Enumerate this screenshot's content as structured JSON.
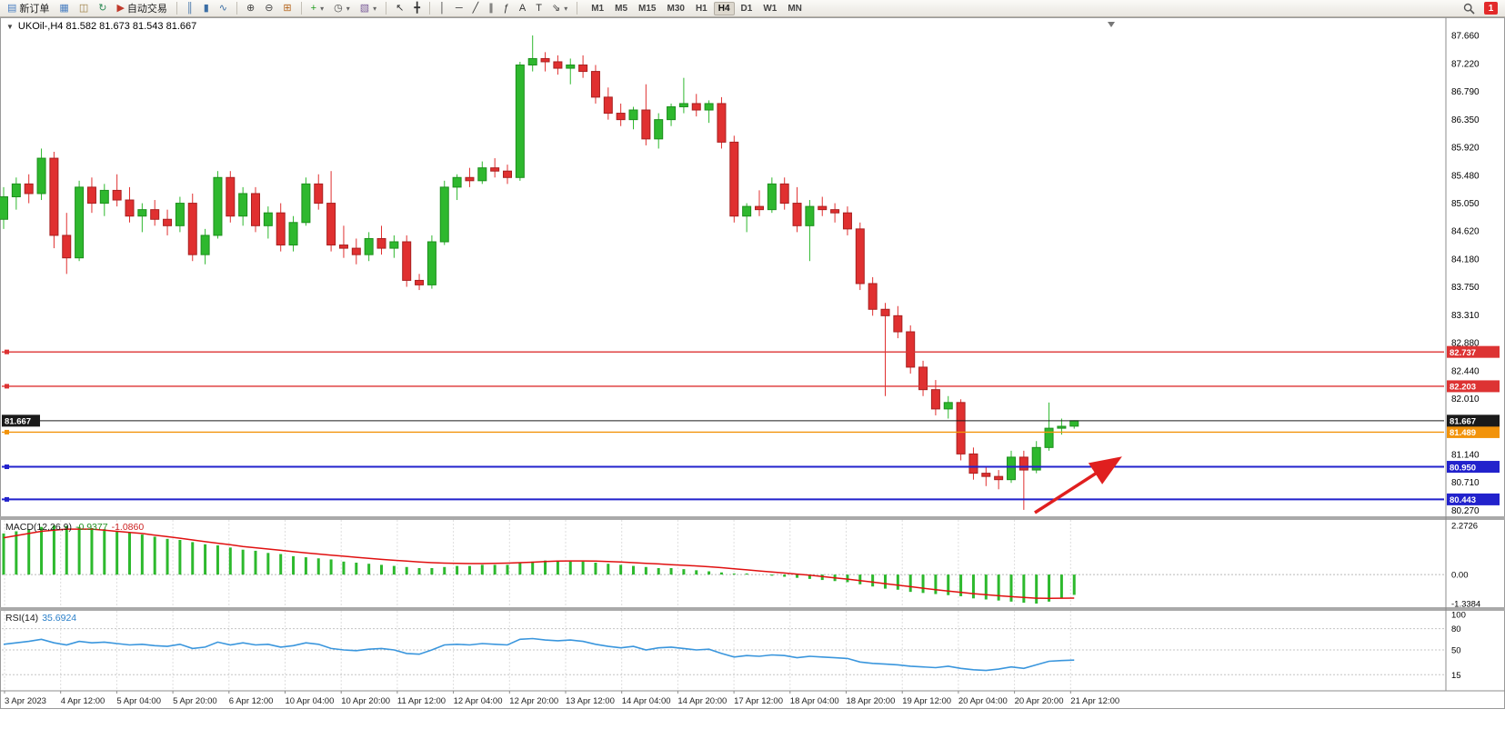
{
  "toolbar": {
    "items": [
      {
        "t": "btn",
        "name": "new-order-button",
        "glyph": "▤",
        "glyph_color": "#4a7fc1",
        "label": "新订单"
      },
      {
        "t": "btn",
        "name": "chart-window-button",
        "glyph": "▦",
        "glyph_color": "#4a7fc1"
      },
      {
        "t": "btn",
        "name": "profiles-button",
        "glyph": "◫",
        "glyph_color": "#9a7b3f"
      },
      {
        "t": "btn",
        "name": "refresh-button",
        "glyph": "↻",
        "glyph_color": "#2e8b57"
      },
      {
        "t": "btn",
        "name": "autotrading-button",
        "glyph": "▶",
        "glyph_color": "#c0392b",
        "label": "自动交易"
      },
      {
        "t": "sep"
      },
      {
        "t": "btn",
        "name": "bar-chart-type-button",
        "glyph": "║",
        "glyph_color": "#3b6ea5"
      },
      {
        "t": "btn",
        "name": "candlestick-chart-type-button",
        "glyph": "▮",
        "glyph_color": "#3b6ea5"
      },
      {
        "t": "btn",
        "name": "line-chart-type-button",
        "glyph": "∿",
        "glyph_color": "#3b6ea5"
      },
      {
        "t": "sep"
      },
      {
        "t": "btn",
        "name": "zoom-in-button",
        "glyph": "⊕",
        "glyph_color": "#444444"
      },
      {
        "t": "btn",
        "name": "zoom-out-button",
        "glyph": "⊖",
        "glyph_color": "#444444"
      },
      {
        "t": "btn",
        "name": "tile-windows-button",
        "glyph": "⊞",
        "glyph_color": "#b5651d"
      },
      {
        "t": "sep"
      },
      {
        "t": "btn",
        "name": "indicators-button",
        "glyph": "+",
        "glyph_color": "#1f9d1f",
        "caret": true
      },
      {
        "t": "btn",
        "name": "periods-button",
        "glyph": "◷",
        "glyph_color": "#444444",
        "caret": true
      },
      {
        "t": "btn",
        "name": "templates-button",
        "glyph": "▧",
        "glyph_color": "#7a5c99",
        "caret": true
      },
      {
        "t": "sep"
      },
      {
        "t": "btn",
        "name": "cursor-button",
        "glyph": "↖",
        "glyph_color": "#333333"
      },
      {
        "t": "btn",
        "name": "crosshair-button",
        "glyph": "╋",
        "glyph_color": "#333333"
      },
      {
        "t": "sep"
      },
      {
        "t": "btn",
        "name": "vertical-line-button",
        "glyph": "│",
        "glyph_color": "#333333"
      },
      {
        "t": "btn",
        "name": "horizontal-line-button",
        "glyph": "─",
        "glyph_color": "#333333"
      },
      {
        "t": "btn",
        "name": "trendline-button",
        "glyph": "╱",
        "glyph_color": "#333333"
      },
      {
        "t": "btn",
        "name": "equidistant-channel-button",
        "glyph": "∥",
        "glyph_color": "#333333"
      },
      {
        "t": "btn",
        "name": "fibonacci-button",
        "glyph": "ƒ",
        "glyph_color": "#333333"
      },
      {
        "t": "btn",
        "name": "text-button",
        "glyph": "A",
        "glyph_color": "#333333"
      },
      {
        "t": "btn",
        "name": "text-label-button",
        "glyph": "T",
        "glyph_color": "#333333"
      },
      {
        "t": "btn",
        "name": "arrows-tool-button",
        "glyph": "⇘",
        "glyph_color": "#333333",
        "caret": true
      },
      {
        "t": "sep"
      },
      {
        "t": "tf"
      }
    ],
    "timeframes": [
      "M1",
      "M5",
      "M15",
      "M30",
      "H1",
      "H4",
      "D1",
      "W1",
      "MN"
    ],
    "active_timeframe": "H4",
    "notification_count": "1"
  },
  "chart": {
    "expander_glyph": "▼",
    "symbol_ohlc": "UKOil-,H4 81.582 81.673 81.543 81.667",
    "macd_name": "MACD(12,26,9)",
    "macd_value1": "-0.9377",
    "macd_value2": "-1.0860",
    "rsi_name": "RSI(14)",
    "rsi_value": "35.6924",
    "colors": {
      "candle_up": "#2eb82e",
      "candle_up_border": "#1d8f1d",
      "candle_down": "#e03030",
      "candle_down_border": "#a82020",
      "macd_histogram": "#2db92d",
      "macd_signal": "#e01010",
      "rsi_line": "#3a96dd",
      "arrow": "#e01f1f",
      "level_red": "#dd3333",
      "level_orange": "#f2930a",
      "level_blue": "#2222cc",
      "current_price": "#1a1a1a"
    }
  },
  "chart_data": {
    "type": "candlestick",
    "symbol": "UKOil-",
    "timeframe": "H4",
    "ylim": [
      80.18,
      87.9
    ],
    "y_ticks": [
      87.66,
      87.22,
      86.79,
      86.35,
      85.92,
      85.48,
      85.05,
      84.62,
      84.18,
      83.75,
      83.31,
      82.88,
      82.44,
      82.01,
      81.14,
      80.71,
      80.27
    ],
    "x_ticks": [
      "3 Apr 2023",
      "4 Apr 12:00",
      "5 Apr 04:00",
      "5 Apr 20:00",
      "6 Apr 12:00",
      "10 Apr 04:00",
      "10 Apr 20:00",
      "11 Apr 12:00",
      "12 Apr 04:00",
      "12 Apr 20:00",
      "13 Apr 12:00",
      "14 Apr 04:00",
      "14 Apr 20:00",
      "17 Apr 12:00",
      "18 Apr 04:00",
      "18 Apr 20:00",
      "19 Apr 12:00",
      "20 Apr 04:00",
      "20 Apr 20:00",
      "21 Apr 12:00"
    ],
    "levels": [
      {
        "value": 82.737,
        "label": "82.737",
        "type": "resistance",
        "color": "#dd3333"
      },
      {
        "value": 82.203,
        "label": "82.203",
        "type": "resistance",
        "color": "#dd3333"
      },
      {
        "value": 81.489,
        "label": "81.489",
        "type": "level",
        "color": "#f2930a"
      },
      {
        "value": 80.95,
        "label": "80.950",
        "type": "support",
        "color": "#2222cc"
      },
      {
        "value": 80.443,
        "label": "80.443",
        "type": "support",
        "color": "#2222cc"
      },
      {
        "value": 81.667,
        "label": "81.667",
        "type": "current_price",
        "color": "#1a1a1a",
        "current": true
      }
    ],
    "ohlc": [
      [
        84.8,
        85.3,
        84.65,
        85.15
      ],
      [
        85.15,
        85.45,
        84.95,
        85.35
      ],
      [
        85.35,
        85.5,
        85.05,
        85.2
      ],
      [
        85.2,
        85.9,
        85.1,
        85.75
      ],
      [
        85.75,
        85.85,
        84.35,
        84.55
      ],
      [
        84.55,
        84.9,
        83.95,
        84.2
      ],
      [
        84.2,
        85.4,
        84.15,
        85.3
      ],
      [
        85.3,
        85.45,
        84.9,
        85.05
      ],
      [
        85.05,
        85.35,
        84.85,
        85.25
      ],
      [
        85.25,
        85.5,
        85.0,
        85.1
      ],
      [
        85.1,
        85.3,
        84.75,
        84.85
      ],
      [
        84.85,
        85.05,
        84.6,
        84.95
      ],
      [
        84.95,
        85.1,
        84.7,
        84.8
      ],
      [
        84.8,
        84.95,
        84.55,
        84.7
      ],
      [
        84.7,
        85.15,
        84.6,
        85.05
      ],
      [
        85.05,
        85.2,
        84.15,
        84.25
      ],
      [
        84.25,
        84.65,
        84.1,
        84.55
      ],
      [
        84.55,
        85.55,
        84.5,
        85.45
      ],
      [
        85.45,
        85.55,
        84.75,
        84.85
      ],
      [
        84.85,
        85.3,
        84.7,
        85.2
      ],
      [
        85.2,
        85.3,
        84.6,
        84.7
      ],
      [
        84.7,
        85.0,
        84.5,
        84.9
      ],
      [
        84.9,
        85.05,
        84.3,
        84.4
      ],
      [
        84.4,
        84.85,
        84.3,
        84.75
      ],
      [
        84.75,
        85.45,
        84.7,
        85.35
      ],
      [
        85.35,
        85.5,
        84.95,
        85.05
      ],
      [
        85.05,
        85.55,
        84.3,
        84.4
      ],
      [
        84.4,
        84.7,
        84.2,
        84.35
      ],
      [
        84.35,
        84.5,
        84.1,
        84.25
      ],
      [
        84.25,
        84.6,
        84.15,
        84.5
      ],
      [
        84.5,
        84.7,
        84.25,
        84.35
      ],
      [
        84.35,
        84.55,
        84.2,
        84.45
      ],
      [
        84.45,
        84.55,
        83.75,
        83.85
      ],
      [
        83.85,
        83.95,
        83.7,
        83.78
      ],
      [
        83.78,
        84.55,
        83.72,
        84.45
      ],
      [
        84.45,
        85.4,
        84.4,
        85.3
      ],
      [
        85.3,
        85.5,
        85.1,
        85.45
      ],
      [
        85.45,
        85.6,
        85.3,
        85.4
      ],
      [
        85.4,
        85.7,
        85.35,
        85.6
      ],
      [
        85.6,
        85.75,
        85.45,
        85.55
      ],
      [
        85.55,
        85.65,
        85.35,
        85.45
      ],
      [
        85.45,
        87.25,
        85.4,
        87.2
      ],
      [
        87.2,
        87.66,
        87.1,
        87.3
      ],
      [
        87.3,
        87.4,
        87.1,
        87.25
      ],
      [
        87.25,
        87.35,
        87.05,
        87.15
      ],
      [
        87.15,
        87.3,
        86.9,
        87.2
      ],
      [
        87.2,
        87.35,
        87.0,
        87.1
      ],
      [
        87.1,
        87.2,
        86.6,
        86.7
      ],
      [
        86.7,
        86.85,
        86.35,
        86.45
      ],
      [
        86.45,
        86.6,
        86.25,
        86.35
      ],
      [
        86.35,
        86.55,
        86.2,
        86.5
      ],
      [
        86.5,
        86.9,
        85.95,
        86.05
      ],
      [
        86.05,
        86.45,
        85.9,
        86.35
      ],
      [
        86.35,
        86.6,
        86.25,
        86.55
      ],
      [
        86.55,
        87.0,
        86.45,
        86.6
      ],
      [
        86.6,
        86.75,
        86.4,
        86.5
      ],
      [
        86.5,
        86.65,
        86.3,
        86.6
      ],
      [
        86.6,
        86.7,
        85.9,
        86.0
      ],
      [
        86.0,
        86.1,
        84.75,
        84.85
      ],
      [
        84.85,
        85.05,
        84.6,
        85.0
      ],
      [
        85.0,
        85.25,
        84.85,
        84.95
      ],
      [
        84.95,
        85.45,
        84.9,
        85.35
      ],
      [
        85.35,
        85.45,
        84.95,
        85.05
      ],
      [
        85.05,
        85.3,
        84.6,
        84.7
      ],
      [
        84.7,
        85.1,
        84.15,
        85.0
      ],
      [
        85.0,
        85.15,
        84.85,
        84.95
      ],
      [
        84.95,
        85.05,
        84.75,
        84.9
      ],
      [
        84.9,
        85.0,
        84.55,
        84.65
      ],
      [
        84.65,
        84.75,
        83.7,
        83.8
      ],
      [
        83.8,
        83.9,
        83.3,
        83.4
      ],
      [
        83.4,
        83.5,
        82.05,
        83.3
      ],
      [
        83.3,
        83.45,
        82.95,
        83.05
      ],
      [
        83.05,
        83.15,
        82.4,
        82.5
      ],
      [
        82.5,
        82.6,
        82.05,
        82.15
      ],
      [
        82.15,
        82.3,
        81.75,
        81.85
      ],
      [
        81.85,
        82.05,
        81.7,
        81.95
      ],
      [
        81.95,
        82.0,
        81.05,
        81.15
      ],
      [
        81.15,
        81.25,
        80.75,
        80.85
      ],
      [
        80.85,
        80.95,
        80.65,
        80.8
      ],
      [
        80.8,
        80.9,
        80.6,
        80.75
      ],
      [
        80.75,
        81.2,
        80.7,
        81.1
      ],
      [
        81.1,
        81.2,
        80.28,
        80.9
      ],
      [
        80.9,
        81.35,
        80.85,
        81.25
      ],
      [
        81.25,
        81.95,
        81.2,
        81.55
      ],
      [
        81.55,
        81.7,
        81.45,
        81.58
      ],
      [
        81.582,
        81.673,
        81.543,
        81.667
      ]
    ],
    "indicators": {
      "macd": {
        "params": "12,26,9",
        "axis_labels": [
          "2.2726",
          "0.00",
          "-1.3384"
        ],
        "axis_values": [
          2.2726,
          0,
          -1.3384
        ],
        "histogram": [
          1.9,
          2.0,
          2.1,
          2.2,
          2.27,
          2.25,
          2.2,
          2.15,
          2.1,
          2.0,
          1.95,
          1.85,
          1.75,
          1.65,
          1.6,
          1.5,
          1.4,
          1.35,
          1.25,
          1.15,
          1.1,
          1.0,
          0.95,
          0.85,
          0.8,
          0.75,
          0.7,
          0.6,
          0.55,
          0.5,
          0.45,
          0.4,
          0.35,
          0.3,
          0.3,
          0.35,
          0.4,
          0.4,
          0.45,
          0.45,
          0.45,
          0.55,
          0.6,
          0.65,
          0.65,
          0.6,
          0.6,
          0.55,
          0.5,
          0.45,
          0.4,
          0.35,
          0.3,
          0.3,
          0.25,
          0.2,
          0.15,
          0.1,
          0.05,
          0.05,
          0.0,
          -0.05,
          -0.1,
          -0.15,
          -0.2,
          -0.25,
          -0.3,
          -0.35,
          -0.45,
          -0.55,
          -0.65,
          -0.7,
          -0.8,
          -0.85,
          -0.9,
          -0.95,
          -1.0,
          -1.1,
          -1.15,
          -1.2,
          -1.25,
          -1.3,
          -1.34,
          -1.25,
          -1.1,
          -0.9377
        ],
        "signal": [
          1.7,
          1.8,
          1.9,
          2.0,
          2.05,
          2.1,
          2.1,
          2.1,
          2.05,
          2.0,
          1.95,
          1.9,
          1.82,
          1.75,
          1.68,
          1.6,
          1.52,
          1.45,
          1.38,
          1.3,
          1.24,
          1.18,
          1.12,
          1.06,
          1.0,
          0.95,
          0.9,
          0.85,
          0.8,
          0.75,
          0.7,
          0.66,
          0.62,
          0.58,
          0.55,
          0.53,
          0.52,
          0.51,
          0.51,
          0.52,
          0.53,
          0.55,
          0.57,
          0.6,
          0.62,
          0.63,
          0.63,
          0.62,
          0.6,
          0.58,
          0.55,
          0.52,
          0.49,
          0.46,
          0.43,
          0.4,
          0.36,
          0.32,
          0.27,
          0.22,
          0.17,
          0.12,
          0.07,
          0.02,
          -0.03,
          -0.09,
          -0.15,
          -0.21,
          -0.28,
          -0.35,
          -0.42,
          -0.49,
          -0.56,
          -0.63,
          -0.7,
          -0.76,
          -0.82,
          -0.88,
          -0.93,
          -0.98,
          -1.02,
          -1.06,
          -1.09,
          -1.1,
          -1.09,
          -1.086
        ]
      },
      "rsi": {
        "params": "14",
        "axis_labels": [
          "100",
          "80",
          "50",
          "15"
        ],
        "axis_values": [
          100,
          80,
          50,
          15
        ],
        "values": [
          58,
          60,
          62,
          65,
          60,
          57,
          62,
          60,
          61,
          59,
          57,
          58,
          56,
          55,
          58,
          52,
          54,
          61,
          57,
          60,
          57,
          58,
          54,
          56,
          60,
          58,
          52,
          50,
          49,
          51,
          52,
          50,
          45,
          44,
          50,
          57,
          58,
          57,
          59,
          58,
          57,
          65,
          66,
          64,
          63,
          64,
          62,
          58,
          55,
          53,
          55,
          50,
          53,
          54,
          52,
          50,
          51,
          45,
          40,
          42,
          41,
          43,
          42,
          39,
          41,
          40,
          39,
          38,
          33,
          31,
          30,
          29,
          27,
          26,
          25,
          27,
          24,
          22,
          21,
          23,
          26,
          24,
          29,
          34,
          35,
          35.69
        ]
      }
    },
    "annotations": [
      {
        "type": "arrow",
        "color": "#e01f1f",
        "direction": "up-right"
      }
    ]
  }
}
